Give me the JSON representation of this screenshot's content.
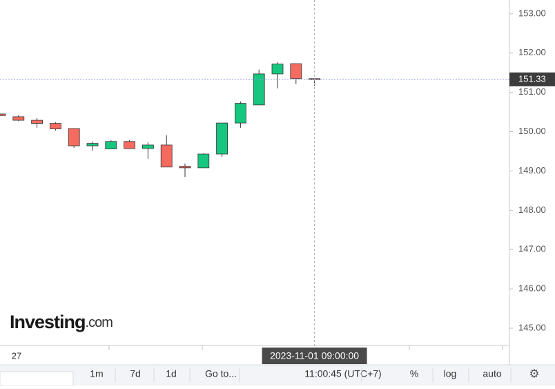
{
  "chart_data": {
    "type": "candlestick",
    "categories": [
      null,
      "27",
      null,
      null,
      null,
      null,
      null,
      null,
      null,
      null,
      null,
      null,
      null,
      null,
      null,
      null,
      null,
      null
    ],
    "open": [
      150.45,
      150.38,
      150.29,
      150.21,
      150.08,
      149.64,
      149.56,
      149.75,
      149.57,
      149.66,
      149.12,
      149.08,
      149.43,
      150.22,
      150.68,
      151.47,
      151.73,
      151.35
    ],
    "high": [
      150.46,
      150.42,
      150.35,
      150.24,
      150.08,
      149.75,
      149.78,
      149.78,
      149.73,
      149.91,
      149.19,
      149.45,
      150.22,
      150.77,
      151.58,
      151.77,
      151.73,
      151.35
    ],
    "low": [
      150.4,
      150.27,
      150.1,
      150.03,
      149.59,
      149.52,
      149.56,
      149.56,
      149.31,
      149.1,
      148.85,
      149.08,
      149.36,
      150.1,
      150.68,
      151.1,
      151.21,
      151.17
    ],
    "close": [
      150.41,
      150.29,
      150.21,
      150.07,
      149.64,
      149.7,
      149.75,
      149.57,
      149.66,
      149.1,
      149.08,
      149.43,
      150.22,
      150.72,
      151.47,
      151.72,
      151.35,
      151.33
    ],
    "up_color": "#17c67f",
    "down_color": "#f56b5f",
    "ylim": [
      144.56,
      153.35
    ],
    "yticks": [
      {
        "value": 145,
        "label": "145.00"
      },
      {
        "value": 146,
        "label": "146.00"
      },
      {
        "value": 147,
        "label": "147.00"
      },
      {
        "value": 148,
        "label": "148.00"
      },
      {
        "value": 149,
        "label": "149.00"
      },
      {
        "value": 150,
        "label": "150.00"
      },
      {
        "value": 151,
        "label": "151.00"
      },
      {
        "value": 152,
        "label": "152.00"
      },
      {
        "value": 153,
        "label": "153.00"
      }
    ],
    "last_price": 151.33,
    "crosshair_label": "2023-11-01 09:00:00",
    "watermark_bold": "Investing",
    "watermark_suffix": ".com"
  },
  "toolbar": {
    "items": [
      "1m",
      "7d",
      "1d",
      "Go to...",
      "11:00:45 (UTC+7)",
      "%",
      "log",
      "auto"
    ]
  }
}
